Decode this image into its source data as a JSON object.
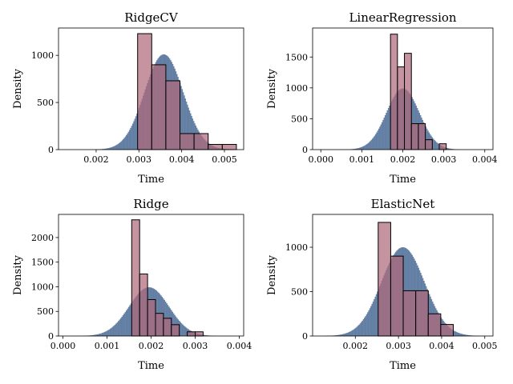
{
  "chart_data": [
    {
      "type": "bar",
      "title": "RidgeCV",
      "xlabel": "Time",
      "ylabel": "Density",
      "xlim": [
        0.00112,
        0.00545
      ],
      "ylim": [
        0,
        1290
      ],
      "xticks": [
        "0.002",
        "0.003",
        "0.004",
        "0.005"
      ],
      "xtick_values": [
        0.002,
        0.003,
        0.004,
        0.005
      ],
      "yticks": [
        "0",
        "500",
        "1000"
      ],
      "ytick_values": [
        0,
        500,
        1000
      ],
      "background_distribution": {
        "mean": 0.00358,
        "sd": 0.00045,
        "peak": 1010,
        "min": 0.00142,
        "max": 0.0051
      },
      "histogram": {
        "bin_edges": [
          0.00297,
          0.0033,
          0.00363,
          0.00396,
          0.00429,
          0.00462,
          0.00495,
          0.00528
        ],
        "values": [
          1230,
          900,
          730,
          170,
          170,
          55,
          55
        ]
      }
    },
    {
      "type": "bar",
      "title": "LinearRegression",
      "xlabel": "Time",
      "ylabel": "Density",
      "xlim": [
        -0.0002,
        0.0042
      ],
      "ylim": [
        0,
        1970
      ],
      "xticks": [
        "0.000",
        "0.001",
        "0.002",
        "0.003",
        "0.004"
      ],
      "xtick_values": [
        0.0,
        0.001,
        0.002,
        0.003,
        0.004
      ],
      "yticks": [
        "0",
        "500",
        "1000",
        "1500"
      ],
      "ytick_values": [
        0,
        500,
        1000,
        1500
      ],
      "background_distribution": {
        "mean": 0.002,
        "sd": 0.0004,
        "peak": 990,
        "min": 5e-05,
        "max": 0.00395
      },
      "histogram": {
        "bin_edges": [
          0.0017,
          0.00187,
          0.00204,
          0.00221,
          0.00238,
          0.00255,
          0.00272,
          0.00289,
          0.00306
        ],
        "values": [
          1870,
          1340,
          1560,
          420,
          420,
          160,
          0,
          95
        ]
      }
    },
    {
      "type": "bar",
      "title": "Ridge",
      "xlabel": "Time",
      "ylabel": "Density",
      "xlim": [
        -0.0001,
        0.0041
      ],
      "ylim": [
        0,
        2470
      ],
      "xticks": [
        "0.000",
        "0.001",
        "0.002",
        "0.003",
        "0.004"
      ],
      "xtick_values": [
        0.0,
        0.001,
        0.002,
        0.003,
        0.004
      ],
      "yticks": [
        "0",
        "500",
        "1000",
        "1500",
        "2000"
      ],
      "ytick_values": [
        0,
        500,
        1000,
        1500,
        2000
      ],
      "background_distribution": {
        "mean": 0.00195,
        "sd": 0.00045,
        "peak": 990,
        "min": 5e-05,
        "max": 0.00395
      },
      "histogram": {
        "bin_edges": [
          0.00156,
          0.00174,
          0.00192,
          0.0021,
          0.00228,
          0.00246,
          0.00264,
          0.00282,
          0.003,
          0.00318
        ],
        "values": [
          2360,
          1260,
          740,
          460,
          360,
          230,
          0,
          85,
          85
        ]
      }
    },
    {
      "type": "bar",
      "title": "ElasticNet",
      "xlabel": "Time",
      "ylabel": "Density",
      "xlim": [
        0.00101,
        0.00519
      ],
      "ylim": [
        0,
        1370
      ],
      "xticks": [
        "0.002",
        "0.003",
        "0.004",
        "0.005"
      ],
      "xtick_values": [
        0.002,
        0.003,
        0.004,
        0.005
      ],
      "yticks": [
        "0",
        "500",
        "1000"
      ],
      "ytick_values": [
        0,
        500,
        1000
      ],
      "background_distribution": {
        "mean": 0.0031,
        "sd": 0.0005,
        "peak": 1000,
        "min": 0.00125,
        "max": 0.005
      },
      "histogram": {
        "bin_edges": [
          0.00253,
          0.00282,
          0.00311,
          0.0034,
          0.00369,
          0.00398,
          0.00427
        ],
        "values": [
          1280,
          900,
          510,
          510,
          250,
          130
        ]
      }
    }
  ],
  "colors": {
    "background_fill": "#4f6f98",
    "histogram_fill": "#b06a7c",
    "histogram_edge": "#000000"
  }
}
